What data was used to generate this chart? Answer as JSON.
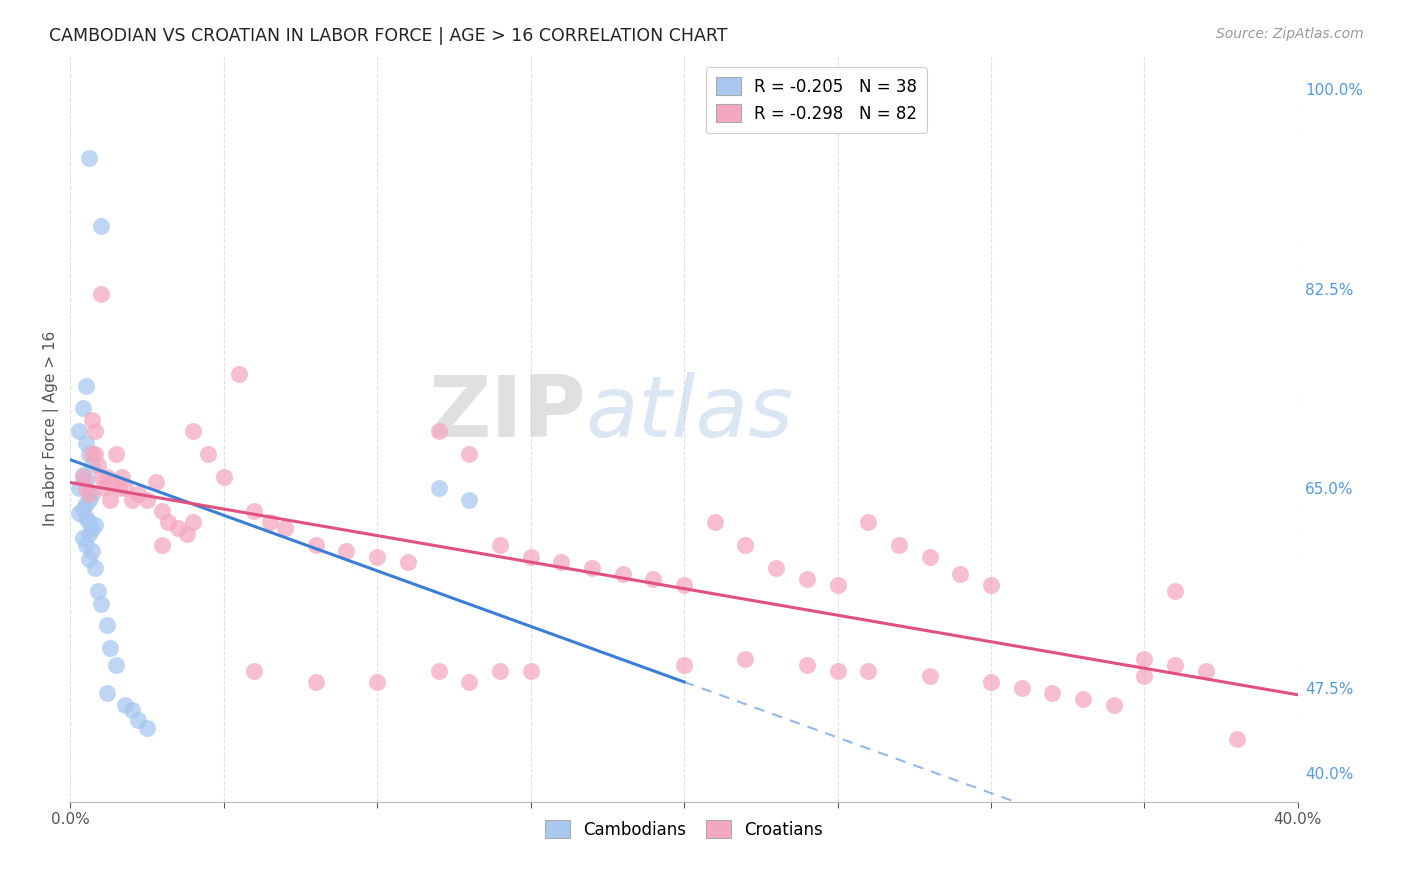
{
  "title": "CAMBODIAN VS CROATIAN IN LABOR FORCE | AGE > 16 CORRELATION CHART",
  "source": "Source: ZipAtlas.com",
  "ylabel": "In Labor Force | Age > 16",
  "xlim": [
    0.0,
    0.4
  ],
  "ylim": [
    0.375,
    1.03
  ],
  "legend_r1": "R = -0.205   N = 38",
  "legend_r2": "R = -0.298   N = 82",
  "legend_color1": "#a8c8f0",
  "legend_color2": "#f4a8c0",
  "cambodian_color": "#a8c8f0",
  "croatian_color": "#f4a8c0",
  "trend_cambodian_color": "#3a7fd5",
  "trend_croatian_color": "#e05080",
  "watermark_zip": "ZIP",
  "watermark_atlas": "atlas",
  "background_color": "#ffffff",
  "grid_color": "#e0e0e0",
  "camb_x": [
    0.006,
    0.01,
    0.005,
    0.004,
    0.003,
    0.005,
    0.006,
    0.007,
    0.004,
    0.005,
    0.003,
    0.007,
    0.006,
    0.005,
    0.004,
    0.003,
    0.005,
    0.006,
    0.008,
    0.007,
    0.006,
    0.004,
    0.005,
    0.007,
    0.006,
    0.008,
    0.009,
    0.01,
    0.012,
    0.013,
    0.015,
    0.012,
    0.018,
    0.02,
    0.022,
    0.025,
    0.12,
    0.13
  ],
  "camb_y": [
    0.94,
    0.88,
    0.74,
    0.72,
    0.7,
    0.69,
    0.68,
    0.67,
    0.662,
    0.657,
    0.65,
    0.645,
    0.64,
    0.636,
    0.632,
    0.628,
    0.624,
    0.62,
    0.618,
    0.614,
    0.61,
    0.606,
    0.6,
    0.595,
    0.588,
    0.58,
    0.56,
    0.548,
    0.53,
    0.51,
    0.495,
    0.47,
    0.46,
    0.455,
    0.447,
    0.44,
    0.65,
    0.64
  ],
  "cro_x": [
    0.004,
    0.005,
    0.006,
    0.007,
    0.007,
    0.008,
    0.008,
    0.009,
    0.01,
    0.01,
    0.011,
    0.012,
    0.013,
    0.014,
    0.015,
    0.016,
    0.017,
    0.018,
    0.02,
    0.022,
    0.025,
    0.028,
    0.03,
    0.032,
    0.035,
    0.038,
    0.04,
    0.045,
    0.05,
    0.055,
    0.06,
    0.065,
    0.07,
    0.08,
    0.09,
    0.1,
    0.11,
    0.12,
    0.13,
    0.14,
    0.15,
    0.16,
    0.17,
    0.18,
    0.19,
    0.2,
    0.21,
    0.22,
    0.23,
    0.24,
    0.25,
    0.26,
    0.27,
    0.28,
    0.29,
    0.3,
    0.22,
    0.24,
    0.25,
    0.26,
    0.28,
    0.3,
    0.31,
    0.32,
    0.33,
    0.34,
    0.35,
    0.36,
    0.37,
    0.38,
    0.2,
    0.15,
    0.13,
    0.12,
    0.1,
    0.08,
    0.14,
    0.06,
    0.36,
    0.35,
    0.04,
    0.03
  ],
  "cro_y": [
    0.66,
    0.65,
    0.645,
    0.68,
    0.71,
    0.7,
    0.68,
    0.67,
    0.66,
    0.82,
    0.65,
    0.66,
    0.64,
    0.655,
    0.68,
    0.65,
    0.66,
    0.65,
    0.64,
    0.645,
    0.64,
    0.655,
    0.63,
    0.62,
    0.615,
    0.61,
    0.7,
    0.68,
    0.66,
    0.75,
    0.63,
    0.62,
    0.615,
    0.6,
    0.595,
    0.59,
    0.585,
    0.7,
    0.68,
    0.6,
    0.59,
    0.585,
    0.58,
    0.575,
    0.57,
    0.565,
    0.62,
    0.6,
    0.58,
    0.57,
    0.565,
    0.62,
    0.6,
    0.59,
    0.575,
    0.565,
    0.5,
    0.495,
    0.49,
    0.49,
    0.485,
    0.48,
    0.475,
    0.47,
    0.465,
    0.46,
    0.5,
    0.495,
    0.49,
    0.43,
    0.495,
    0.49,
    0.48,
    0.49,
    0.48,
    0.48,
    0.49,
    0.49,
    0.56,
    0.485,
    0.62,
    0.6
  ]
}
